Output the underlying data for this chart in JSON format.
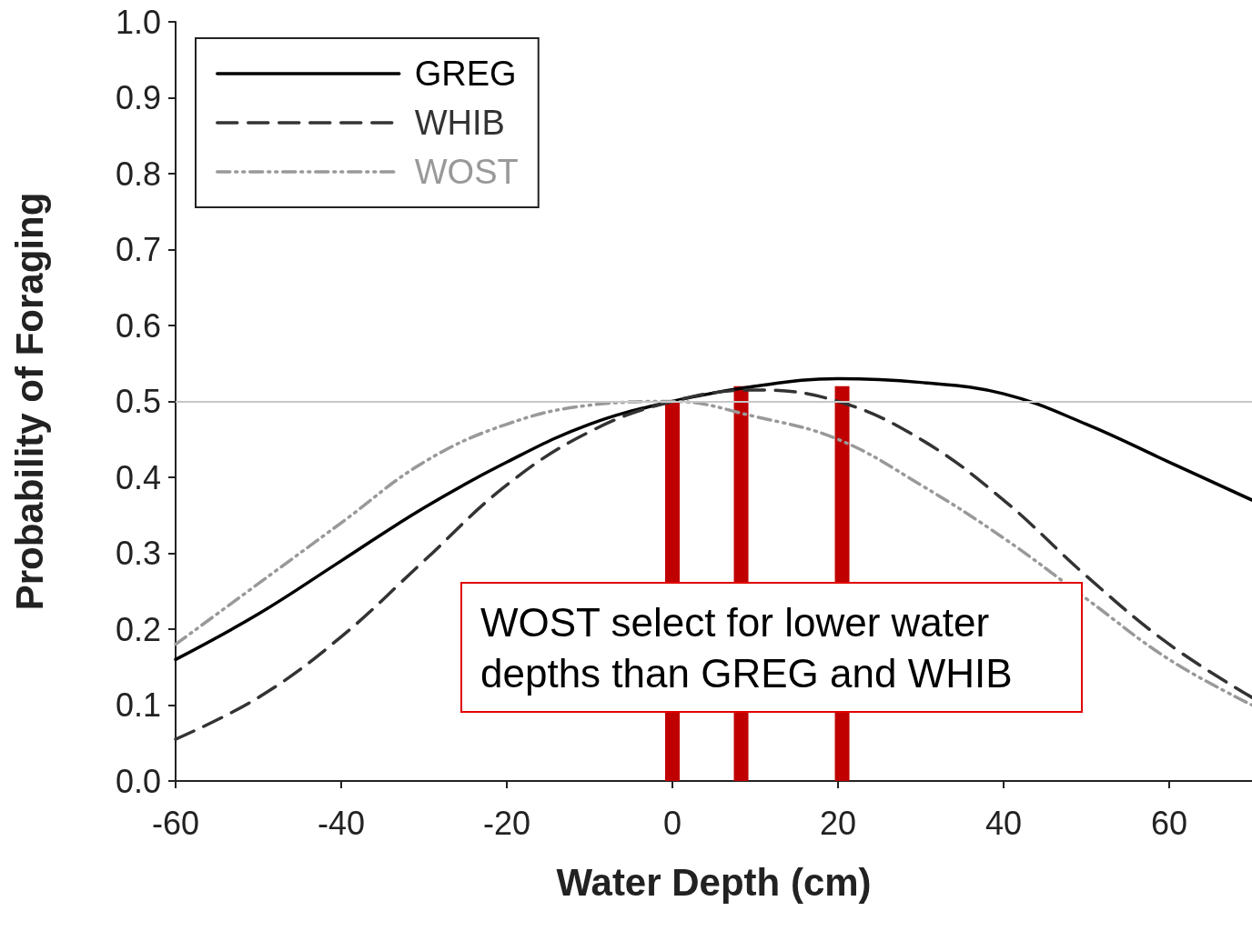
{
  "chart_data": {
    "type": "line",
    "xlabel": "Water Depth (cm)",
    "ylabel": "Probability of Foraging",
    "x": [
      -60,
      -50,
      -40,
      -30,
      -20,
      -10,
      0,
      10,
      20,
      30,
      40,
      50,
      60,
      70
    ],
    "series": [
      {
        "name": "GREG",
        "color": "#000000",
        "line_style": "solid",
        "values": [
          0.16,
          0.22,
          0.29,
          0.36,
          0.42,
          0.47,
          0.5,
          0.52,
          0.53,
          0.525,
          0.51,
          0.47,
          0.42,
          0.37
        ]
      },
      {
        "name": "WHIB",
        "color": "#333333",
        "line_style": "dashed",
        "values": [
          0.055,
          0.11,
          0.19,
          0.29,
          0.39,
          0.46,
          0.5,
          0.515,
          0.5,
          0.45,
          0.37,
          0.27,
          0.18,
          0.11
        ]
      },
      {
        "name": "WOST",
        "color": "#999999",
        "line_style": "dashdot",
        "values": [
          0.18,
          0.26,
          0.34,
          0.42,
          0.47,
          0.495,
          0.5,
          0.48,
          0.45,
          0.39,
          0.32,
          0.24,
          0.16,
          0.1
        ]
      },
      {
        "type": "bar",
        "color": "#c00000",
        "x": [
          0,
          8.3,
          20.5
        ],
        "values": [
          0.5,
          0.52,
          0.52
        ]
      }
    ],
    "xlim": [
      -60,
      70
    ],
    "xticks": [
      -60,
      -40,
      -20,
      0,
      20,
      40,
      60
    ],
    "ylim": [
      0,
      1
    ],
    "yticks": [
      {
        "value": 0,
        "label": "0.0"
      },
      0.1,
      0.2,
      0.3,
      0.4,
      0.5,
      0.6,
      0.7,
      0.8,
      0.9,
      {
        "value": 1,
        "label": "1.0"
      }
    ],
    "ref_lines": [
      {
        "axis": "y",
        "value": 0.5,
        "color": "#c8c8c8"
      }
    ],
    "annotations": [
      "WOST select for lower water depths than GREG and WHIB"
    ],
    "marker": "none",
    "grid": false,
    "legend": "top left"
  }
}
